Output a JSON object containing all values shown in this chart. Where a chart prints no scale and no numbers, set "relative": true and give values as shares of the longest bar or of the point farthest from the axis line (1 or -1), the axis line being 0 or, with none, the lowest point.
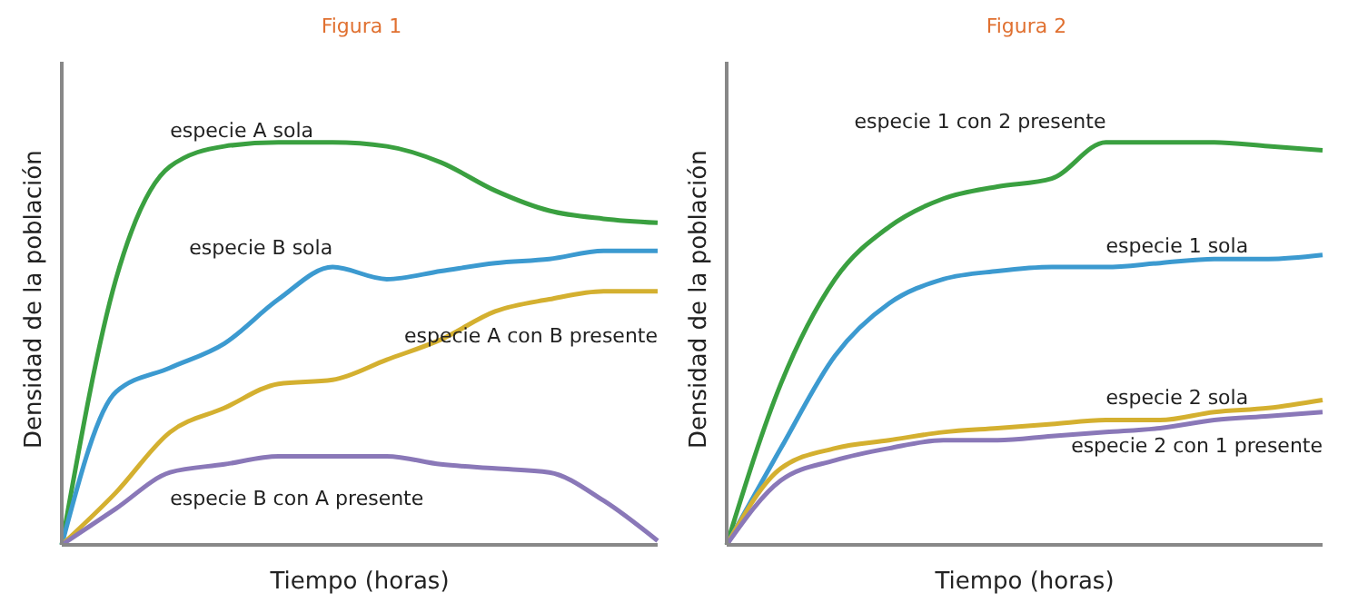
{
  "chart_data": [
    {
      "type": "line",
      "title": "Figura 1",
      "xlabel": "Tiempo (horas)",
      "ylabel": "Densidad de la población",
      "relative": true,
      "grid": false,
      "legend": false,
      "marker": "none",
      "line_style": "solid",
      "categories": [
        null,
        null,
        null,
        null,
        null,
        null,
        null,
        null,
        null,
        null,
        null,
        null
      ],
      "series": [
        {
          "name": "especie A sola",
          "color": "#3aa040",
          "values": [
            0,
            0.66,
            0.94,
            0.99,
            1,
            1,
            0.99,
            0.95,
            0.88,
            0.83,
            0.81,
            0.8
          ]
        },
        {
          "name": "especie B sola",
          "color": "#3c9ad0",
          "values": [
            0,
            0.38,
            0.44,
            0.5,
            0.61,
            0.69,
            0.66,
            0.68,
            0.7,
            0.71,
            0.73,
            0.73
          ]
        },
        {
          "name": "especie A con B presente",
          "color": "#d4b030",
          "values": [
            0,
            0.13,
            0.28,
            0.34,
            0.4,
            0.41,
            0.46,
            0.51,
            0.58,
            0.61,
            0.63,
            0.63
          ]
        },
        {
          "name": "especie B con A presente",
          "color": "#8a78b8",
          "values": [
            0,
            0.09,
            0.18,
            0.2,
            0.22,
            0.22,
            0.22,
            0.2,
            0.19,
            0.18,
            0.11,
            0.01
          ]
        }
      ]
    },
    {
      "type": "line",
      "title": "Figura 2",
      "xlabel": "Tiempo (horas)",
      "ylabel": "Densidad de la población",
      "relative": true,
      "grid": false,
      "legend": false,
      "marker": "none",
      "line_style": "solid",
      "categories": [
        null,
        null,
        null,
        null,
        null,
        null,
        null,
        null,
        null,
        null,
        null,
        null
      ],
      "series": [
        {
          "name": "especie 1 con 2 presente",
          "color": "#3aa040",
          "values": [
            0,
            0.4,
            0.66,
            0.79,
            0.86,
            0.89,
            0.91,
            1,
            1,
            1,
            0.99,
            0.98
          ]
        },
        {
          "name": "especie 1 sola",
          "color": "#3c9ad0",
          "values": [
            0,
            0.24,
            0.47,
            0.6,
            0.66,
            0.68,
            0.69,
            0.69,
            0.7,
            0.71,
            0.71,
            0.72
          ]
        },
        {
          "name": "especie 2 sola",
          "color": "#d4b030",
          "values": [
            0,
            0.19,
            0.24,
            0.26,
            0.28,
            0.29,
            0.3,
            0.31,
            0.31,
            0.33,
            0.34,
            0.36
          ]
        },
        {
          "name": "especie 2 con 1 presente",
          "color": "#8a78b8",
          "values": [
            0,
            0.16,
            0.21,
            0.24,
            0.26,
            0.26,
            0.27,
            0.28,
            0.29,
            0.31,
            0.32,
            0.33
          ]
        }
      ]
    }
  ]
}
